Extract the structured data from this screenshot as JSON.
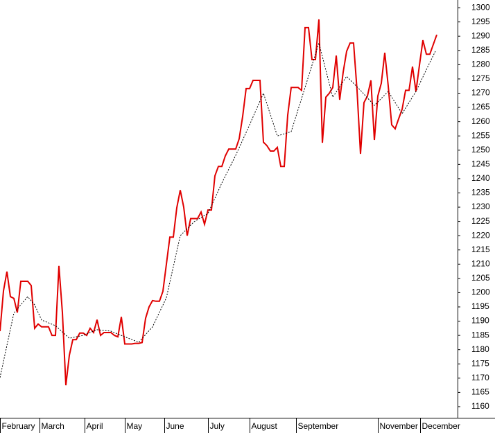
{
  "chart_data": {
    "type": "line",
    "xlim": [
      0,
      132
    ],
    "ylim": [
      1156.1,
      1302.7
    ],
    "yticks": [
      1160,
      1165,
      1170,
      1175,
      1180,
      1185,
      1190,
      1195,
      1200,
      1205,
      1210,
      1215,
      1220,
      1225,
      1230,
      1235,
      1240,
      1245,
      1250,
      1255,
      1260,
      1265,
      1270,
      1275,
      1280,
      1285,
      1290,
      1295,
      1300
    ],
    "xticks": [
      {
        "value": 0,
        "label": "February"
      },
      {
        "value": 11.4,
        "label": "March"
      },
      {
        "value": 24.4,
        "label": "April"
      },
      {
        "value": 36,
        "label": "May"
      },
      {
        "value": 47.4,
        "label": "June"
      },
      {
        "value": 60,
        "label": "July"
      },
      {
        "value": 72,
        "label": "August"
      },
      {
        "value": 85.4,
        "label": "September"
      },
      {
        "value": 109,
        "label": "November"
      },
      {
        "value": 121.2,
        "label": "December"
      }
    ],
    "series": [
      {
        "color": "#e00000",
        "style": "solid",
        "x": [
          0,
          1,
          2,
          3,
          4,
          5,
          6,
          7,
          8,
          9,
          10,
          11,
          12,
          13,
          14,
          15,
          16,
          17,
          18,
          19,
          20,
          21,
          22,
          23,
          24,
          25,
          26,
          27,
          28,
          29,
          30,
          31,
          32,
          33,
          34,
          35,
          36,
          37,
          38,
          39,
          40,
          41,
          42,
          43,
          44,
          45,
          46,
          47,
          48,
          49,
          50,
          51,
          52,
          53,
          54,
          55,
          56,
          57,
          58,
          59,
          60,
          61,
          62,
          63,
          64,
          65,
          66,
          67,
          68,
          69,
          70,
          71,
          72,
          73,
          74,
          75,
          76,
          77,
          78,
          79,
          80,
          81,
          82,
          83,
          84,
          85,
          86,
          87,
          88,
          89,
          90,
          91,
          92,
          93,
          94,
          95,
          96,
          97,
          98,
          99,
          100,
          101,
          102,
          103,
          104,
          105,
          106,
          107,
          108,
          109,
          110,
          111,
          112,
          113,
          114,
          115,
          116,
          117,
          118,
          119,
          120,
          121,
          122,
          123,
          124,
          125,
          126
        ],
        "values": [
          1186.5,
          1200.6,
          1207.4,
          1198.6,
          1198,
          1193,
          1204,
          1204,
          1204,
          1202.5,
          1187.5,
          1189,
          1188,
          1188,
          1188,
          1185,
          1185,
          1209.4,
          1193,
          1167.5,
          1178,
          1183.5,
          1183.5,
          1185.8,
          1185.8,
          1185,
          1187.5,
          1186,
          1190.5,
          1185,
          1186,
          1186,
          1186,
          1185,
          1184.5,
          1191.5,
          1182,
          1182,
          1182,
          1182.2,
          1182.2,
          1182.5,
          1191,
          1195,
          1197.2,
          1197,
          1197,
          1200.5,
          1210,
          1219.5,
          1219.5,
          1229.8,
          1236,
          1230,
          1220,
          1226,
          1226,
          1226,
          1228.3,
          1224,
          1229,
          1229,
          1241,
          1244.3,
          1244.3,
          1248,
          1250.4,
          1250.4,
          1250.4,
          1254,
          1261.8,
          1271.6,
          1271.6,
          1274.5,
          1274.5,
          1274.5,
          1252.8,
          1251.6,
          1249.7,
          1249.7,
          1251,
          1244.3,
          1244.3,
          1262.3,
          1272,
          1272,
          1272,
          1271,
          1293,
          1293,
          1281.8,
          1281.8,
          1295.9,
          1252.6,
          1268.6,
          1270,
          1272,
          1283.2,
          1267.7,
          1277.4,
          1284.7,
          1287.6,
          1287.6,
          1271,
          1248.7,
          1266.7,
          1269,
          1274.5,
          1253.6,
          1269,
          1273.5,
          1284.2,
          1272.5,
          1258.9,
          1257.5,
          1261,
          1264.3,
          1271,
          1271,
          1279.3,
          1270.6,
          1279.8,
          1288.6,
          1283.7,
          1283.7,
          1287.1,
          1290.5
        ]
      },
      {
        "color": "#000000",
        "style": "dotted",
        "x": [
          0,
          4,
          8,
          10,
          12,
          16,
          20,
          24,
          28,
          32,
          36,
          40,
          44,
          48,
          52,
          56,
          60,
          64,
          68,
          72,
          76,
          80,
          84,
          88,
          92,
          96,
          100,
          104,
          108,
          112,
          116,
          120,
          124,
          125.6
        ],
        "values": [
          1170.2,
          1192.8,
          1198.6,
          1195.7,
          1190.4,
          1188.4,
          1184,
          1185,
          1187,
          1186.5,
          1184.5,
          1182.6,
          1188,
          1198.2,
          1220,
          1224.9,
          1227.8,
          1238.5,
          1248.2,
          1258.9,
          1270,
          1255,
          1256.5,
          1272,
          1287.6,
          1268.6,
          1275.9,
          1271,
          1265.7,
          1270.6,
          1262.8,
          1270.6,
          1280.8,
          1284.7
        ]
      }
    ]
  }
}
